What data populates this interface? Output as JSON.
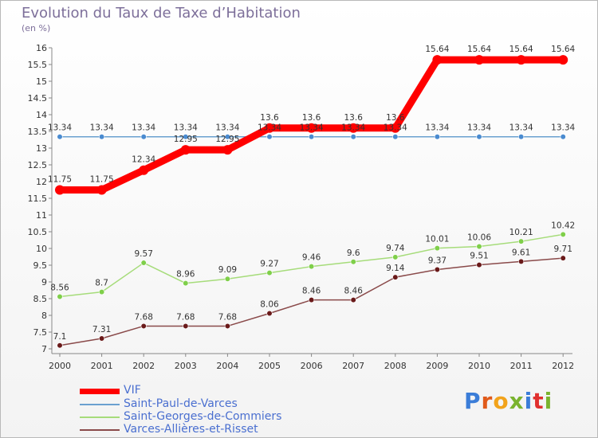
{
  "header": {
    "title": "Evolution du Taux de Taxe d’Habitation",
    "subtitle": "(en %)"
  },
  "logo": {
    "text": "Proxiti",
    "letter_colors": [
      "#3b7dd8",
      "#e05a1a",
      "#f2a31b",
      "#7ab32e",
      "#3b7dd8",
      "#e0302f",
      "#7ab32e"
    ]
  },
  "chart_data": {
    "type": "line",
    "x": [
      "2000",
      "2001",
      "2002",
      "2003",
      "2004",
      "2005",
      "2006",
      "2007",
      "2008",
      "2009",
      "2010",
      "2011",
      "2012"
    ],
    "ylim": [
      7,
      16
    ],
    "y_ticks": [
      "7",
      "7.5",
      "8",
      "8.5",
      "9",
      "9.5",
      "10",
      "10.5",
      "11",
      "11.5",
      "12",
      "12.5",
      "13",
      "13.5",
      "14",
      "14.5",
      "15",
      "15.5",
      "16"
    ],
    "grid": false,
    "legend_position": "bottom-left",
    "series": [
      {
        "name": "VIF",
        "color": "#ff0000",
        "values": [
          11.75,
          11.75,
          12.34,
          12.95,
          12.95,
          13.6,
          13.6,
          13.6,
          13.6,
          15.64,
          15.64,
          15.64,
          15.64
        ],
        "labels": [
          "11.75",
          "11.75",
          "12.34",
          "12.95",
          "12.95",
          "13.6",
          "13.6",
          "13.6",
          "13.6",
          "15.64",
          "15.64",
          "15.64",
          "15.64"
        ]
      },
      {
        "name": "Saint-Paul-de-Varces",
        "color": "#6aa0d0",
        "marker_color": "#4a8bd0",
        "values": [
          13.34,
          13.34,
          13.34,
          13.34,
          13.34,
          13.34,
          13.34,
          13.34,
          13.34,
          13.34,
          13.34,
          13.34,
          13.34
        ],
        "labels": [
          "13.34",
          "13.34",
          "13.34",
          "13.34",
          "13.34",
          "13.34",
          "13.34",
          "13.34",
          "13.34",
          "13.34",
          "13.34",
          "13.34",
          "13.34"
        ]
      },
      {
        "name": "Saint-Georges-de-Commiers",
        "color": "#a6dc7a",
        "marker_color": "#7fcf4a",
        "values": [
          8.56,
          8.7,
          9.57,
          8.96,
          9.09,
          9.27,
          9.46,
          9.6,
          9.74,
          10.01,
          10.06,
          10.21,
          10.42
        ],
        "labels": [
          "8.56",
          "8.7",
          "9.57",
          "8.96",
          "9.09",
          "9.27",
          "9.46",
          "9.6",
          "9.74",
          "10.01",
          "10.06",
          "10.21",
          "10.42"
        ]
      },
      {
        "name": "Varces-Allières-et-Risset",
        "color": "#8a4a4a",
        "marker_color": "#6a1a1a",
        "values": [
          7.1,
          7.31,
          7.68,
          7.68,
          7.68,
          8.06,
          8.46,
          8.46,
          9.14,
          9.37,
          9.51,
          9.61,
          9.71
        ],
        "labels": [
          "7.1",
          "7.31",
          "7.68",
          "7.68",
          "7.68",
          "8.06",
          "8.46",
          "8.46",
          "9.14",
          "9.37",
          "9.51",
          "9.61",
          "9.71"
        ]
      }
    ]
  }
}
